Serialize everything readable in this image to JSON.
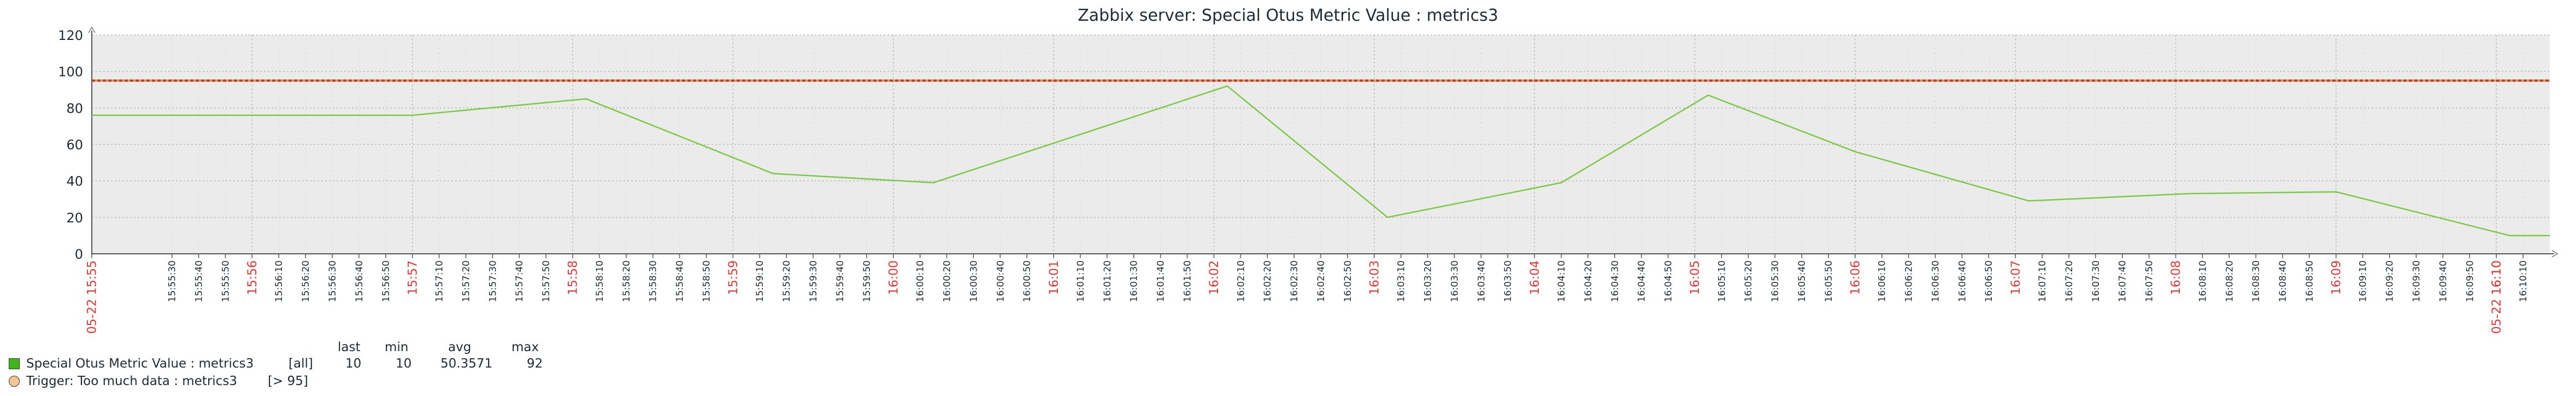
{
  "chart_data": {
    "type": "line",
    "title": "Zabbix server: Special Otus Metric Value : metrics3",
    "ylim": [
      0,
      120
    ],
    "y_ticks": [
      0,
      20,
      40,
      60,
      80,
      100,
      120
    ],
    "grid": true,
    "x_range": [
      "15:55:00",
      "16:10:20"
    ],
    "x_labels": [
      {
        "t": "05-22 15:55",
        "major": true
      },
      {
        "t": "15:55:30"
      },
      {
        "t": "15:55:40"
      },
      {
        "t": "15:55:50"
      },
      {
        "t": "15:56",
        "major": true
      },
      {
        "t": "15:56:10"
      },
      {
        "t": "15:56:20"
      },
      {
        "t": "15:56:30"
      },
      {
        "t": "15:56:40"
      },
      {
        "t": "15:56:50"
      },
      {
        "t": "15:57",
        "major": true
      },
      {
        "t": "15:57:10"
      },
      {
        "t": "15:57:20"
      },
      {
        "t": "15:57:30"
      },
      {
        "t": "15:57:40"
      },
      {
        "t": "15:57:50"
      },
      {
        "t": "15:58",
        "major": true
      },
      {
        "t": "15:58:10"
      },
      {
        "t": "15:58:20"
      },
      {
        "t": "15:58:30"
      },
      {
        "t": "15:58:40"
      },
      {
        "t": "15:58:50"
      },
      {
        "t": "15:59",
        "major": true
      },
      {
        "t": "15:59:10"
      },
      {
        "t": "15:59:20"
      },
      {
        "t": "15:59:30"
      },
      {
        "t": "15:59:40"
      },
      {
        "t": "15:59:50"
      },
      {
        "t": "16:00",
        "major": true
      },
      {
        "t": "16:00:10"
      },
      {
        "t": "16:00:20"
      },
      {
        "t": "16:00:30"
      },
      {
        "t": "16:00:40"
      },
      {
        "t": "16:00:50"
      },
      {
        "t": "16:01",
        "major": true
      },
      {
        "t": "16:01:10"
      },
      {
        "t": "16:01:20"
      },
      {
        "t": "16:01:30"
      },
      {
        "t": "16:01:40"
      },
      {
        "t": "16:01:50"
      },
      {
        "t": "16:02",
        "major": true
      },
      {
        "t": "16:02:10"
      },
      {
        "t": "16:02:20"
      },
      {
        "t": "16:02:30"
      },
      {
        "t": "16:02:40"
      },
      {
        "t": "16:02:50"
      },
      {
        "t": "16:03",
        "major": true
      },
      {
        "t": "16:03:10"
      },
      {
        "t": "16:03:20"
      },
      {
        "t": "16:03:30"
      },
      {
        "t": "16:03:40"
      },
      {
        "t": "16:03:50"
      },
      {
        "t": "16:04",
        "major": true
      },
      {
        "t": "16:04:10"
      },
      {
        "t": "16:04:20"
      },
      {
        "t": "16:04:30"
      },
      {
        "t": "16:04:40"
      },
      {
        "t": "16:04:50"
      },
      {
        "t": "16:05",
        "major": true
      },
      {
        "t": "16:05:10"
      },
      {
        "t": "16:05:20"
      },
      {
        "t": "16:05:30"
      },
      {
        "t": "16:05:40"
      },
      {
        "t": "16:05:50"
      },
      {
        "t": "16:06",
        "major": true
      },
      {
        "t": "16:06:10"
      },
      {
        "t": "16:06:20"
      },
      {
        "t": "16:06:30"
      },
      {
        "t": "16:06:40"
      },
      {
        "t": "16:06:50"
      },
      {
        "t": "16:07",
        "major": true
      },
      {
        "t": "16:07:10"
      },
      {
        "t": "16:07:20"
      },
      {
        "t": "16:07:30"
      },
      {
        "t": "16:07:40"
      },
      {
        "t": "16:07:50"
      },
      {
        "t": "16:08",
        "major": true
      },
      {
        "t": "16:08:10"
      },
      {
        "t": "16:08:20"
      },
      {
        "t": "16:08:30"
      },
      {
        "t": "16:08:40"
      },
      {
        "t": "16:08:50"
      },
      {
        "t": "16:09",
        "major": true
      },
      {
        "t": "16:09:10"
      },
      {
        "t": "16:09:20"
      },
      {
        "t": "16:09:30"
      },
      {
        "t": "16:09:40"
      },
      {
        "t": "16:09:50"
      },
      {
        "t": "16:10",
        "major": true
      },
      {
        "t": "16:10:10"
      },
      {
        "t": "05-22 16:10",
        "major": true
      }
    ],
    "series": [
      {
        "name": "Special Otus Metric Value : metrics3",
        "color": "#7ac943",
        "points": [
          {
            "x": "15:55:00",
            "y": 76
          },
          {
            "x": "15:57:00",
            "y": 76
          },
          {
            "x": "15:58:05",
            "y": 85
          },
          {
            "x": "15:59:15",
            "y": 44
          },
          {
            "x": "16:00:15",
            "y": 39
          },
          {
            "x": "16:02:05",
            "y": 92
          },
          {
            "x": "16:03:05",
            "y": 20
          },
          {
            "x": "16:04:10",
            "y": 39
          },
          {
            "x": "16:05:05",
            "y": 87
          },
          {
            "x": "16:06:00",
            "y": 56
          },
          {
            "x": "16:07:05",
            "y": 29
          },
          {
            "x": "16:08:05",
            "y": 33
          },
          {
            "x": "16:09:00",
            "y": 34
          },
          {
            "x": "16:10:05",
            "y": 10
          },
          {
            "x": "16:10:20",
            "y": 10
          }
        ]
      }
    ],
    "trigger": {
      "name": "Trigger: Too much data : metrics3",
      "value": 95,
      "color": "#c0392b",
      "swatch": "#f7c58f"
    }
  },
  "colors": {
    "plot_bg": "#ebebeb",
    "grid": "#b9b9b9",
    "major_label": "#e33734",
    "minor_label": "#1f2c33"
  },
  "legend": {
    "headers": {
      "last": "last",
      "min": "min",
      "avg": "avg",
      "max": "max"
    },
    "series_row": {
      "name": "Special Otus Metric Value : metrics3",
      "func": "[all]",
      "last": "10",
      "min": "10",
      "avg": "50.3571",
      "max": "92",
      "color": "#3fb618"
    },
    "trigger_row": {
      "name": "Trigger: Too much data : metrics3",
      "cond": "[> 95]",
      "color": "#f7c58f"
    }
  }
}
